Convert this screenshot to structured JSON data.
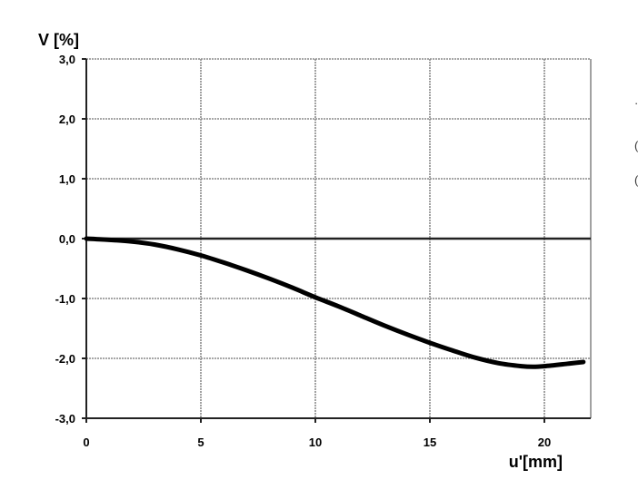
{
  "chart_data": {
    "type": "line",
    "xlabel": "u'[mm]",
    "ylabel": "V [%]",
    "xlim": [
      0,
      22
    ],
    "ylim": [
      -3,
      3
    ],
    "x_ticks": [
      0,
      5,
      10,
      15,
      20
    ],
    "x_tick_labels": [
      "0",
      "5",
      "10",
      "15",
      "20"
    ],
    "y_ticks": [
      3,
      2,
      1,
      0,
      -1,
      -2,
      -3
    ],
    "y_tick_labels": [
      "3,0",
      "2,0",
      "1,0",
      "0,0",
      "-1,0",
      "-2,0",
      "-3,0"
    ],
    "grid": true,
    "series": [
      {
        "color": "#000000",
        "x": [
          0,
          1,
          2,
          3,
          4,
          5,
          6,
          7,
          8,
          9,
          10,
          11,
          12,
          13,
          14,
          15,
          16,
          17,
          18,
          19,
          19.5,
          20,
          21,
          21.7
        ],
        "y": [
          0.0,
          -0.02,
          -0.05,
          -0.1,
          -0.18,
          -0.28,
          -0.4,
          -0.53,
          -0.67,
          -0.82,
          -0.98,
          -1.13,
          -1.29,
          -1.45,
          -1.6,
          -1.74,
          -1.87,
          -1.99,
          -2.08,
          -2.13,
          -2.14,
          -2.13,
          -2.09,
          -2.06
        ]
      }
    ]
  },
  "edge_marks": [
    "·",
    "(",
    "("
  ]
}
